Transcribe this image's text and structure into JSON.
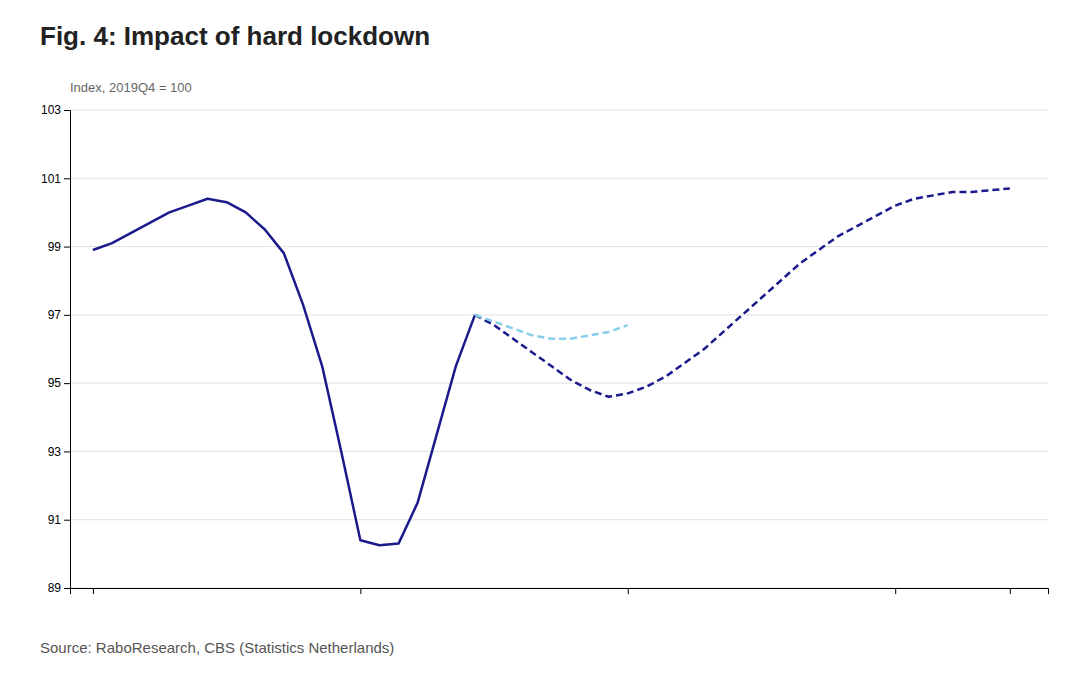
{
  "chart_data": {
    "type": "line",
    "title": "Fig. 4: Impact of hard lockdown",
    "subtitle": "Index, 2019Q4 = 100",
    "annotations": [
      "Source: RaboResearch, CBS (Statistics Netherlands)"
    ],
    "xlim": [
      -0.3,
      12.5
    ],
    "xticks": [
      0,
      3.5,
      7.0,
      10.5,
      12.0
    ],
    "ylim": [
      89,
      103
    ],
    "yticks": [
      89,
      91,
      93,
      95,
      97,
      99,
      101,
      103
    ],
    "grid": true,
    "tick_labels": "y",
    "series": [
      {
        "color": "#1a1a8c",
        "line_style": "solid",
        "x": [
          0,
          0.25,
          0.5,
          0.75,
          1.0,
          1.25,
          1.5,
          1.75,
          2.0,
          2.25,
          2.5,
          2.75,
          3.0,
          3.25,
          3.5,
          3.75,
          4.0,
          4.25,
          4.5,
          4.75,
          5.0
        ],
        "values": [
          98.9,
          99.1,
          99.4,
          99.7,
          100.0,
          100.2,
          100.4,
          100.3,
          100.0,
          99.5,
          98.8,
          97.3,
          95.5,
          93.0,
          90.4,
          90.25,
          90.3,
          91.5,
          93.5,
          95.5,
          97.0
        ]
      },
      {
        "color": "#1a1a8c",
        "line_style": "dashed",
        "x": [
          5.0,
          5.25,
          5.5,
          5.75,
          6.0,
          6.25,
          6.5,
          6.75,
          7.0,
          7.25,
          7.5,
          7.75,
          8.0,
          8.25,
          8.5,
          8.75,
          9.0,
          9.25,
          9.5,
          9.75,
          10.0,
          10.25,
          10.5,
          10.75,
          11.0,
          11.25,
          11.5,
          11.75,
          12.0
        ],
        "values": [
          97.0,
          96.7,
          96.3,
          95.9,
          95.5,
          95.1,
          94.8,
          94.6,
          94.7,
          94.9,
          95.2,
          95.6,
          96.0,
          96.5,
          97.0,
          97.5,
          98.0,
          98.5,
          98.9,
          99.3,
          99.6,
          99.9,
          100.2,
          100.4,
          100.5,
          100.6,
          100.6,
          100.65,
          100.7
        ]
      },
      {
        "color": "#87CEEB",
        "line_style": "dashed",
        "x": [
          5.0,
          5.25,
          5.5,
          5.75,
          6.0,
          6.25,
          6.5,
          6.75,
          7.0
        ],
        "values": [
          97.0,
          96.8,
          96.6,
          96.4,
          96.3,
          96.3,
          96.4,
          96.5,
          96.7
        ]
      }
    ]
  }
}
